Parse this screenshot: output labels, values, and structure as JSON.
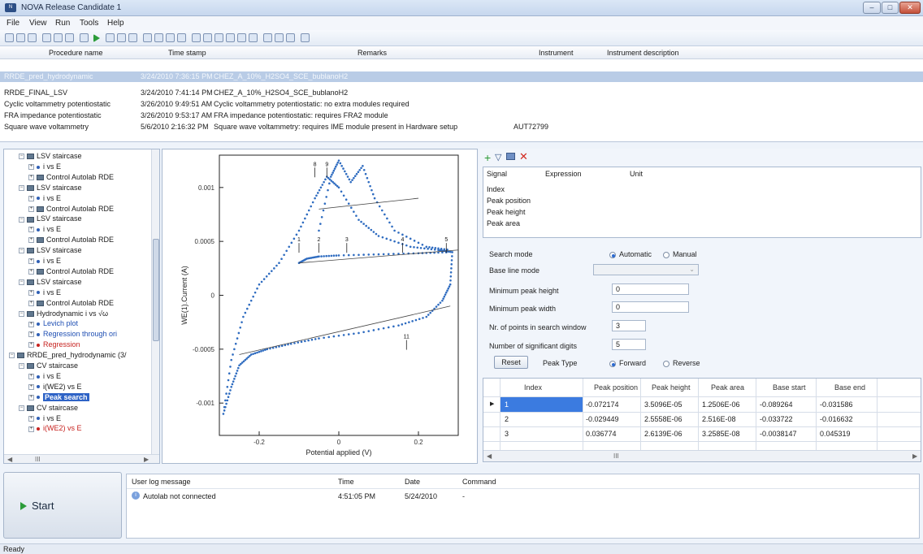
{
  "window": {
    "title": "NOVA Release Candidate 1",
    "app_icon": "nova-app-icon"
  },
  "menu": [
    "File",
    "View",
    "Run",
    "Tools",
    "Help"
  ],
  "procedures": {
    "columns": [
      "Procedure name",
      "Time stamp",
      "Remarks",
      "Instrument",
      "Instrument description"
    ],
    "rows": [
      {
        "name": "RRDE_pred_hydrodynamic",
        "time": "3/24/2010 7:36:15 PM",
        "remarks": "CHEZ_A_10%_H2SO4_SCE_bublanoH2",
        "selected": true
      },
      {
        "name": "RRDE_FINAL_LSV",
        "time": "3/24/2010 7:41:14 PM",
        "remarks": "CHEZ_A_10%_H2SO4_SCE_bublanoH2"
      },
      {
        "name": "Cyclic voltammetry potentiostatic",
        "time": "3/26/2010 9:49:51 AM",
        "remarks": "Cyclic voltammetry potentiostatic: no extra modules required"
      },
      {
        "name": "FRA impedance potentiostatic",
        "time": "3/26/2010 9:53:17 AM",
        "remarks": "FRA impedance potentiostatic: requires FRA2 module"
      },
      {
        "name": "Square wave voltammetry",
        "time": "5/6/2010 2:16:32 PM",
        "remarks": "Square wave voltammetry: requires IME module present in Hardware setup",
        "instrument": "AUT72799"
      }
    ]
  },
  "tree": [
    {
      "label": "LSV staircase",
      "indent": 1,
      "type": "folder"
    },
    {
      "label": "i vs E",
      "indent": 2,
      "type": "dot"
    },
    {
      "label": "Control Autolab RDE",
      "indent": 2,
      "type": "icon"
    },
    {
      "label": "LSV staircase",
      "indent": 1,
      "type": "folder"
    },
    {
      "label": "i vs E",
      "indent": 2,
      "type": "dot"
    },
    {
      "label": "Control Autolab RDE",
      "indent": 2,
      "type": "icon"
    },
    {
      "label": "LSV staircase",
      "indent": 1,
      "type": "folder"
    },
    {
      "label": "i vs E",
      "indent": 2,
      "type": "dot"
    },
    {
      "label": "Control Autolab RDE",
      "indent": 2,
      "type": "icon"
    },
    {
      "label": "LSV staircase",
      "indent": 1,
      "type": "folder"
    },
    {
      "label": "i vs E",
      "indent": 2,
      "type": "dot"
    },
    {
      "label": "Control Autolab RDE",
      "indent": 2,
      "type": "icon"
    },
    {
      "label": "LSV staircase",
      "indent": 1,
      "type": "folder"
    },
    {
      "label": "i vs E",
      "indent": 2,
      "type": "dot"
    },
    {
      "label": "Control Autolab RDE",
      "indent": 2,
      "type": "icon"
    },
    {
      "label": "Hydrodynamic i vs √ω",
      "indent": 1,
      "type": "folder"
    },
    {
      "label": "Levich plot",
      "indent": 2,
      "type": "dot",
      "color": "blue"
    },
    {
      "label": "Regression through ori",
      "indent": 2,
      "type": "dot",
      "color": "blue"
    },
    {
      "label": "Regression",
      "indent": 2,
      "type": "dot",
      "color": "red"
    },
    {
      "label": "RRDE_pred_hydrodynamic (3/",
      "indent": 0,
      "type": "folder"
    },
    {
      "label": "CV staircase",
      "indent": 1,
      "type": "folder"
    },
    {
      "label": "i vs E",
      "indent": 2,
      "type": "dot"
    },
    {
      "label": "i(WE2) vs E",
      "indent": 2,
      "type": "dot"
    },
    {
      "label": "Peak search",
      "indent": 2,
      "type": "dot",
      "selected": true
    },
    {
      "label": "CV staircase",
      "indent": 1,
      "type": "folder"
    },
    {
      "label": "i vs E",
      "indent": 2,
      "type": "dot"
    },
    {
      "label": "i(WE2) vs E",
      "indent": 2,
      "type": "dot",
      "color": "red"
    }
  ],
  "tree_scroll_label": "III",
  "chart_data": {
    "type": "scatter",
    "xlabel": "Potential applied (V)",
    "ylabel": "WE(1).Current (A)",
    "xlim": [
      -0.3,
      0.3
    ],
    "ylim": [
      -0.0013,
      0.0013
    ],
    "xticks": [
      "-0.2",
      "0",
      "0.2"
    ],
    "yticks": [
      "0.001",
      "0.0005",
      "0",
      "-0.0005",
      "-0.001"
    ],
    "peak_labels": [
      "8",
      "9",
      "1",
      "2",
      "3",
      "4",
      "5",
      "11"
    ]
  },
  "signal_table": {
    "toolbar_icons": [
      "add-icon",
      "filter-icon",
      "export-icon",
      "delete-icon"
    ],
    "columns": [
      "Signal",
      "Expression",
      "Unit"
    ],
    "signals": [
      "Index",
      "Peak position",
      "Peak height",
      "Peak area"
    ]
  },
  "settings": {
    "search_mode_label": "Search mode",
    "search_mode_options": [
      "Automatic",
      "Manual"
    ],
    "baseline_label": "Base line mode",
    "baseline_value": "",
    "min_height_label": "Minimum peak height",
    "min_height": "0",
    "min_width_label": "Minimum peak width",
    "min_width": "0",
    "points_label": "Nr. of points in search window",
    "points": "3",
    "digits_label": "Number of significant digits",
    "digits": "5",
    "reset_label": "Reset",
    "peak_type_label": "Peak Type",
    "peak_type_options": [
      "Forward",
      "Reverse"
    ]
  },
  "peaks": {
    "columns": [
      "Index",
      "Peak position",
      "Peak height",
      "Peak area",
      "Base start",
      "Base end"
    ],
    "rows": [
      [
        "1",
        "-0.072174",
        "3.5096E-05",
        "1.2506E-06",
        "-0.089264",
        "-0.031586"
      ],
      [
        "2",
        "-0.029449",
        "2.5558E-06",
        "2.516E-08",
        "-0.033722",
        "-0.016632"
      ],
      [
        "3",
        "0.036774",
        "2.6139E-06",
        "3.2585E-08",
        "-0.0038147",
        "0.045319"
      ]
    ],
    "scroll_label": "III"
  },
  "start_label": "Start",
  "log": {
    "columns": [
      "User log message",
      "Time",
      "Date",
      "Command"
    ],
    "rows": [
      {
        "message": "Autolab not connected",
        "time": "4:51:05 PM",
        "date": "5/24/2010",
        "command": "-"
      }
    ]
  },
  "status": "Ready"
}
